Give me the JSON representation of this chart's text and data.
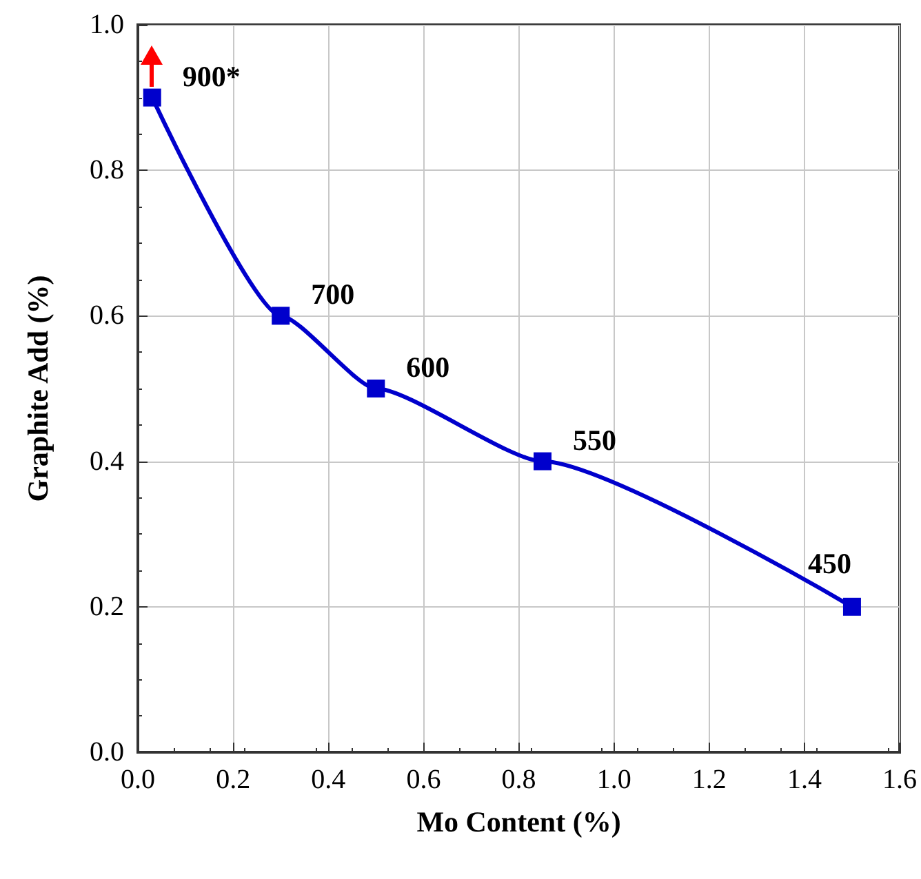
{
  "chart_data": {
    "type": "line",
    "xlabel": "Mo Content (%)",
    "ylabel": "Graphite Add (%)",
    "x": [
      0.03,
      0.3,
      0.5,
      0.85,
      1.5
    ],
    "series": [
      {
        "color": "#0000cc",
        "values": [
          0.9,
          0.6,
          0.5,
          0.4,
          0.2
        ]
      }
    ],
    "xlim": [
      0,
      1.6
    ],
    "xticks": [
      {
        "value": 0,
        "label": "0.0"
      },
      0.2,
      0.4,
      0.6,
      0.8,
      {
        "value": 1,
        "label": "1.0"
      },
      1.2,
      1.4,
      1.6
    ],
    "ylim": [
      0,
      1
    ],
    "yticks": [
      {
        "value": 0,
        "label": "0.0"
      },
      0.2,
      0.4,
      0.6,
      0.8,
      {
        "value": 1,
        "label": "1.0"
      }
    ],
    "annotations": [
      {
        "text": "900*",
        "x": 0.03,
        "y": 0.9
      },
      {
        "text": "700",
        "x": 0.3,
        "y": 0.6
      },
      {
        "text": "600",
        "x": 0.5,
        "y": 0.5
      },
      {
        "text": "550",
        "x": 0.85,
        "y": 0.4
      },
      {
        "text": "450",
        "x": 1.5,
        "y": 0.2
      }
    ],
    "grid": true,
    "marker": "square",
    "line_style": "solid"
  }
}
